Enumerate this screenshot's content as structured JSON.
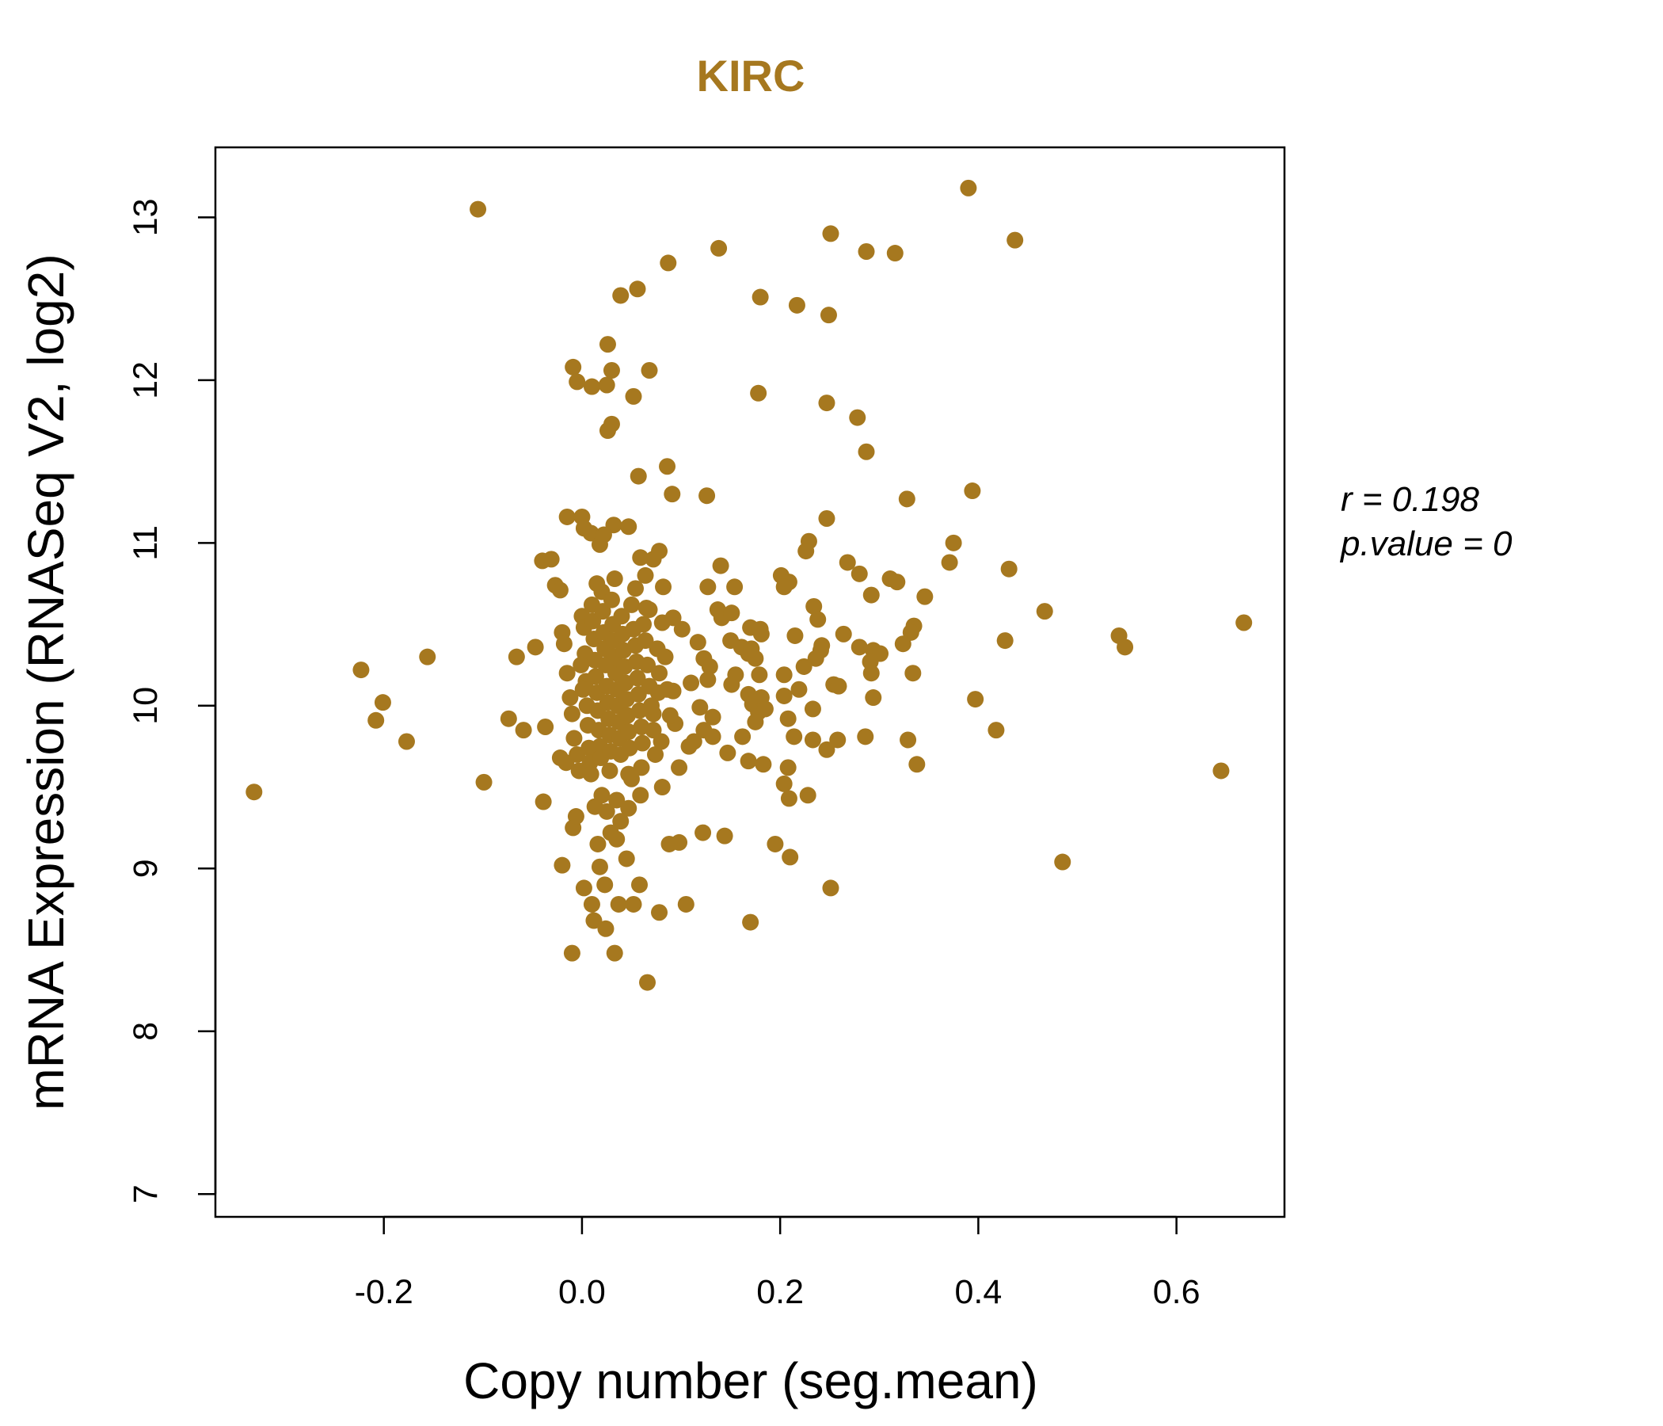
{
  "chart_data": {
    "type": "scatter",
    "title": "KIRC",
    "xlabel": "Copy number (seg.mean)",
    "ylabel": "mRNA Expression (RNASeq V2, log2)",
    "xlim": [
      -0.37,
      0.709
    ],
    "ylim": [
      6.86,
      13.43
    ],
    "xticks": [
      -0.2,
      0.0,
      0.2,
      0.4,
      0.6
    ],
    "xtick_labels": [
      "-0.2",
      "0.0",
      "0.2",
      "0.4",
      "0.6"
    ],
    "yticks": [
      7,
      8,
      9,
      10,
      11,
      12,
      13
    ],
    "ytick_labels": [
      "7",
      "8",
      "9",
      "10",
      "11",
      "12",
      "13"
    ],
    "grid": false,
    "color": "#A6781F",
    "annotations": {
      "r_label": "r = 0.198",
      "p_label": "p.value = 0"
    },
    "points": [
      [
        -0.331,
        9.47
      ],
      [
        -0.105,
        13.05
      ],
      [
        0.39,
        13.18
      ],
      [
        0.437,
        12.86
      ],
      [
        0.251,
        12.9
      ],
      [
        0.287,
        12.79
      ],
      [
        0.316,
        12.78
      ],
      [
        0.138,
        12.81
      ],
      [
        0.087,
        12.72
      ],
      [
        0.056,
        12.56
      ],
      [
        0.039,
        12.52
      ],
      [
        0.18,
        12.51
      ],
      [
        0.217,
        12.46
      ],
      [
        0.249,
        12.4
      ],
      [
        0.026,
        12.22
      ],
      [
        -0.009,
        12.08
      ],
      [
        0.03,
        12.06
      ],
      [
        0.068,
        12.06
      ],
      [
        -0.005,
        11.99
      ],
      [
        0.01,
        11.96
      ],
      [
        0.025,
        11.97
      ],
      [
        0.052,
        11.9
      ],
      [
        0.178,
        11.92
      ],
      [
        0.247,
        11.86
      ],
      [
        0.278,
        11.77
      ],
      [
        0.03,
        11.73
      ],
      [
        0.026,
        11.69
      ],
      [
        0.287,
        11.56
      ],
      [
        0.086,
        11.47
      ],
      [
        0.057,
        11.41
      ],
      [
        0.091,
        11.3
      ],
      [
        0.126,
        11.29
      ],
      [
        0.394,
        11.32
      ],
      [
        0.328,
        11.27
      ],
      [
        0.247,
        11.15
      ],
      [
        0.375,
        11.0
      ],
      [
        0.229,
        11.01
      ],
      [
        0.226,
        10.95
      ],
      [
        0.371,
        10.88
      ],
      [
        0.431,
        10.84
      ],
      [
        0.268,
        10.88
      ],
      [
        0.28,
        10.81
      ],
      [
        0.311,
        10.78
      ],
      [
        0.318,
        10.76
      ],
      [
        0.201,
        10.8
      ],
      [
        0.209,
        10.76
      ],
      [
        0.204,
        10.73
      ],
      [
        0.346,
        10.67
      ],
      [
        0.292,
        10.68
      ],
      [
        0.14,
        10.86
      ],
      [
        0.154,
        10.73
      ],
      [
        0.127,
        10.73
      ],
      [
        0.467,
        10.58
      ],
      [
        0.668,
        10.51
      ],
      [
        0.542,
        10.43
      ],
      [
        0.548,
        10.36
      ],
      [
        0.427,
        10.4
      ],
      [
        0.335,
        10.49
      ],
      [
        0.332,
        10.45
      ],
      [
        0.324,
        10.38
      ],
      [
        0.234,
        10.61
      ],
      [
        0.238,
        10.53
      ],
      [
        0.215,
        10.43
      ],
      [
        0.264,
        10.44
      ],
      [
        0.242,
        10.37
      ],
      [
        0.28,
        10.36
      ],
      [
        0.294,
        10.34
      ],
      [
        0.301,
        10.32
      ],
      [
        0.291,
        10.27
      ],
      [
        0.241,
        10.34
      ],
      [
        0.236,
        10.29
      ],
      [
        0.334,
        10.2
      ],
      [
        0.292,
        10.2
      ],
      [
        0.224,
        10.24
      ],
      [
        0.204,
        10.19
      ],
      [
        0.254,
        10.13
      ],
      [
        0.259,
        10.12
      ],
      [
        0.294,
        10.05
      ],
      [
        0.219,
        10.1
      ],
      [
        0.204,
        10.06
      ],
      [
        0.233,
        9.98
      ],
      [
        0.208,
        9.92
      ],
      [
        0.214,
        9.81
      ],
      [
        0.233,
        9.79
      ],
      [
        0.258,
        9.79
      ],
      [
        0.247,
        9.73
      ],
      [
        0.286,
        9.81
      ],
      [
        0.329,
        9.79
      ],
      [
        0.338,
        9.64
      ],
      [
        0.397,
        10.04
      ],
      [
        0.418,
        9.85
      ],
      [
        0.645,
        9.6
      ],
      [
        0.485,
        9.04
      ],
      [
        0.208,
        9.62
      ],
      [
        0.204,
        9.52
      ],
      [
        0.209,
        9.43
      ],
      [
        0.228,
        9.45
      ],
      [
        0.183,
        9.64
      ],
      [
        0.168,
        9.66
      ],
      [
        0.195,
        9.15
      ],
      [
        0.21,
        9.07
      ],
      [
        0.251,
        8.88
      ],
      [
        0.17,
        8.67
      ],
      [
        0.144,
        9.2
      ],
      [
        0.122,
        9.22
      ],
      [
        0.098,
        9.16
      ],
      [
        0.088,
        9.15
      ],
      [
        0.105,
        8.78
      ],
      [
        0.078,
        8.73
      ],
      [
        0.066,
        8.3
      ],
      [
        0.033,
        8.48
      ],
      [
        -0.01,
        8.48
      ],
      [
        0.024,
        8.63
      ],
      [
        0.012,
        8.68
      ],
      [
        0.01,
        8.78
      ],
      [
        0.037,
        8.78
      ],
      [
        0.052,
        8.78
      ],
      [
        0.058,
        8.9
      ],
      [
        0.023,
        8.9
      ],
      [
        0.002,
        8.88
      ],
      [
        -0.02,
        9.02
      ],
      [
        0.018,
        9.01
      ],
      [
        0.045,
        9.06
      ],
      [
        0.016,
        9.15
      ],
      [
        0.035,
        9.18
      ],
      [
        -0.009,
        9.25
      ],
      [
        -0.006,
        9.32
      ],
      [
        -0.039,
        9.41
      ],
      [
        -0.099,
        9.53
      ],
      [
        -0.223,
        10.22
      ],
      [
        -0.201,
        10.02
      ],
      [
        -0.208,
        9.91
      ],
      [
        -0.177,
        9.78
      ],
      [
        -0.156,
        10.3
      ],
      [
        -0.074,
        9.92
      ],
      [
        -0.059,
        9.85
      ],
      [
        -0.066,
        10.3
      ],
      [
        -0.037,
        9.87
      ],
      [
        -0.047,
        10.36
      ],
      [
        -0.04,
        10.89
      ],
      [
        -0.031,
        10.9
      ],
      [
        -0.027,
        10.74
      ],
      [
        -0.022,
        10.71
      ],
      [
        -0.015,
        11.16
      ],
      [
        0.0,
        11.16
      ],
      [
        0.002,
        11.09
      ],
      [
        0.032,
        11.11
      ],
      [
        0.047,
        11.1
      ],
      [
        0.009,
        11.06
      ],
      [
        0.018,
        10.99
      ],
      [
        0.022,
        11.05
      ],
      [
        0.059,
        10.91
      ],
      [
        0.072,
        10.9
      ],
      [
        0.078,
        10.95
      ],
      [
        0.082,
        10.73
      ],
      [
        0.068,
        10.59
      ],
      [
        0.081,
        10.51
      ],
      [
        0.092,
        10.54
      ],
      [
        0.101,
        10.47
      ],
      [
        0.117,
        10.39
      ],
      [
        0.123,
        10.29
      ],
      [
        0.129,
        10.24
      ],
      [
        0.127,
        10.16
      ],
      [
        0.11,
        10.14
      ],
      [
        0.092,
        10.09
      ],
      [
        0.077,
        10.08
      ],
      [
        0.072,
        9.95
      ],
      [
        0.094,
        9.89
      ],
      [
        0.089,
        9.94
      ],
      [
        0.119,
        9.99
      ],
      [
        0.132,
        9.93
      ],
      [
        0.123,
        9.85
      ],
      [
        0.132,
        9.81
      ],
      [
        0.113,
        9.78
      ],
      [
        0.108,
        9.75
      ],
      [
        0.098,
        9.62
      ],
      [
        0.081,
        9.5
      ],
      [
        0.059,
        9.45
      ],
      [
        0.047,
        9.37
      ],
      [
        0.039,
        9.29
      ],
      [
        0.029,
        9.22
      ],
      [
        0.137,
        10.59
      ],
      [
        0.141,
        10.54
      ],
      [
        0.151,
        10.57
      ],
      [
        0.15,
        10.4
      ],
      [
        0.161,
        10.36
      ],
      [
        0.168,
        10.32
      ],
      [
        0.175,
        10.29
      ],
      [
        0.17,
        10.48
      ],
      [
        0.18,
        10.47
      ],
      [
        0.181,
        10.44
      ],
      [
        0.171,
        10.35
      ],
      [
        0.179,
        10.19
      ],
      [
        0.155,
        10.19
      ],
      [
        0.151,
        10.13
      ],
      [
        0.168,
        10.07
      ],
      [
        0.181,
        10.05
      ],
      [
        0.172,
        10.01
      ],
      [
        0.178,
        9.96
      ],
      [
        0.185,
        9.98
      ],
      [
        0.175,
        9.9
      ],
      [
        0.162,
        9.81
      ],
      [
        0.147,
        9.71
      ],
      [
        -0.02,
        10.45
      ],
      [
        -0.018,
        10.38
      ],
      [
        -0.015,
        10.2
      ],
      [
        -0.012,
        10.05
      ],
      [
        -0.01,
        9.95
      ],
      [
        -0.008,
        9.8
      ],
      [
        -0.005,
        9.7
      ],
      [
        -0.003,
        9.6
      ],
      [
        0.0,
        10.55
      ],
      [
        0.002,
        10.48
      ],
      [
        0.003,
        10.32
      ],
      [
        0.004,
        10.15
      ],
      [
        0.005,
        10.0
      ],
      [
        0.006,
        9.88
      ],
      [
        0.007,
        9.74
      ],
      [
        0.008,
        9.65
      ],
      [
        0.01,
        10.62
      ],
      [
        0.011,
        10.52
      ],
      [
        0.012,
        10.41
      ],
      [
        0.013,
        10.28
      ],
      [
        0.014,
        10.18
      ],
      [
        0.015,
        10.08
      ],
      [
        0.016,
        9.97
      ],
      [
        0.017,
        9.85
      ],
      [
        0.018,
        9.75
      ],
      [
        0.019,
        9.68
      ],
      [
        0.02,
        10.7
      ],
      [
        0.021,
        10.58
      ],
      [
        0.022,
        10.45
      ],
      [
        0.023,
        10.35
      ],
      [
        0.024,
        10.25
      ],
      [
        0.025,
        10.12
      ],
      [
        0.026,
        10.02
      ],
      [
        0.027,
        9.92
      ],
      [
        0.028,
        9.82
      ],
      [
        0.029,
        9.72
      ],
      [
        0.03,
        10.65
      ],
      [
        0.031,
        10.5
      ],
      [
        0.032,
        10.4
      ],
      [
        0.033,
        10.3
      ],
      [
        0.034,
        10.2
      ],
      [
        0.035,
        10.1
      ],
      [
        0.036,
        10.0
      ],
      [
        0.037,
        9.9
      ],
      [
        0.038,
        9.8
      ],
      [
        0.039,
        9.7
      ],
      [
        0.04,
        10.55
      ],
      [
        0.041,
        10.44
      ],
      [
        0.042,
        10.34
      ],
      [
        0.043,
        10.24
      ],
      [
        0.044,
        10.14
      ],
      [
        0.045,
        10.04
      ],
      [
        0.046,
        9.94
      ],
      [
        0.047,
        9.84
      ],
      [
        0.048,
        9.74
      ],
      [
        0.05,
        10.62
      ],
      [
        0.052,
        10.47
      ],
      [
        0.054,
        10.37
      ],
      [
        0.055,
        10.27
      ],
      [
        0.056,
        10.17
      ],
      [
        0.057,
        10.07
      ],
      [
        0.058,
        9.97
      ],
      [
        0.06,
        9.87
      ],
      [
        0.061,
        9.77
      ],
      [
        0.062,
        10.5
      ],
      [
        0.064,
        10.4
      ],
      [
        0.066,
        10.25
      ],
      [
        0.068,
        10.12
      ],
      [
        0.07,
        10.0
      ],
      [
        0.072,
        9.85
      ],
      [
        0.074,
        9.7
      ],
      [
        0.076,
        10.35
      ],
      [
        0.078,
        10.2
      ],
      [
        0.08,
        9.78
      ],
      [
        0.084,
        10.3
      ],
      [
        0.086,
        10.1
      ],
      [
        -0.001,
        10.25
      ],
      [
        0.001,
        10.1
      ],
      [
        0.009,
        9.58
      ],
      [
        0.028,
        9.6
      ],
      [
        0.047,
        9.58
      ],
      [
        0.06,
        9.62
      ],
      [
        0.033,
        10.78
      ],
      [
        0.015,
        10.75
      ],
      [
        0.054,
        10.72
      ],
      [
        0.064,
        10.8
      ],
      [
        -0.016,
        9.65
      ],
      [
        -0.022,
        9.68
      ],
      [
        0.02,
        9.45
      ],
      [
        0.035,
        9.42
      ],
      [
        0.025,
        9.35
      ],
      [
        0.013,
        9.38
      ],
      [
        0.05,
        9.55
      ],
      [
        0.065,
        10.6
      ]
    ]
  }
}
